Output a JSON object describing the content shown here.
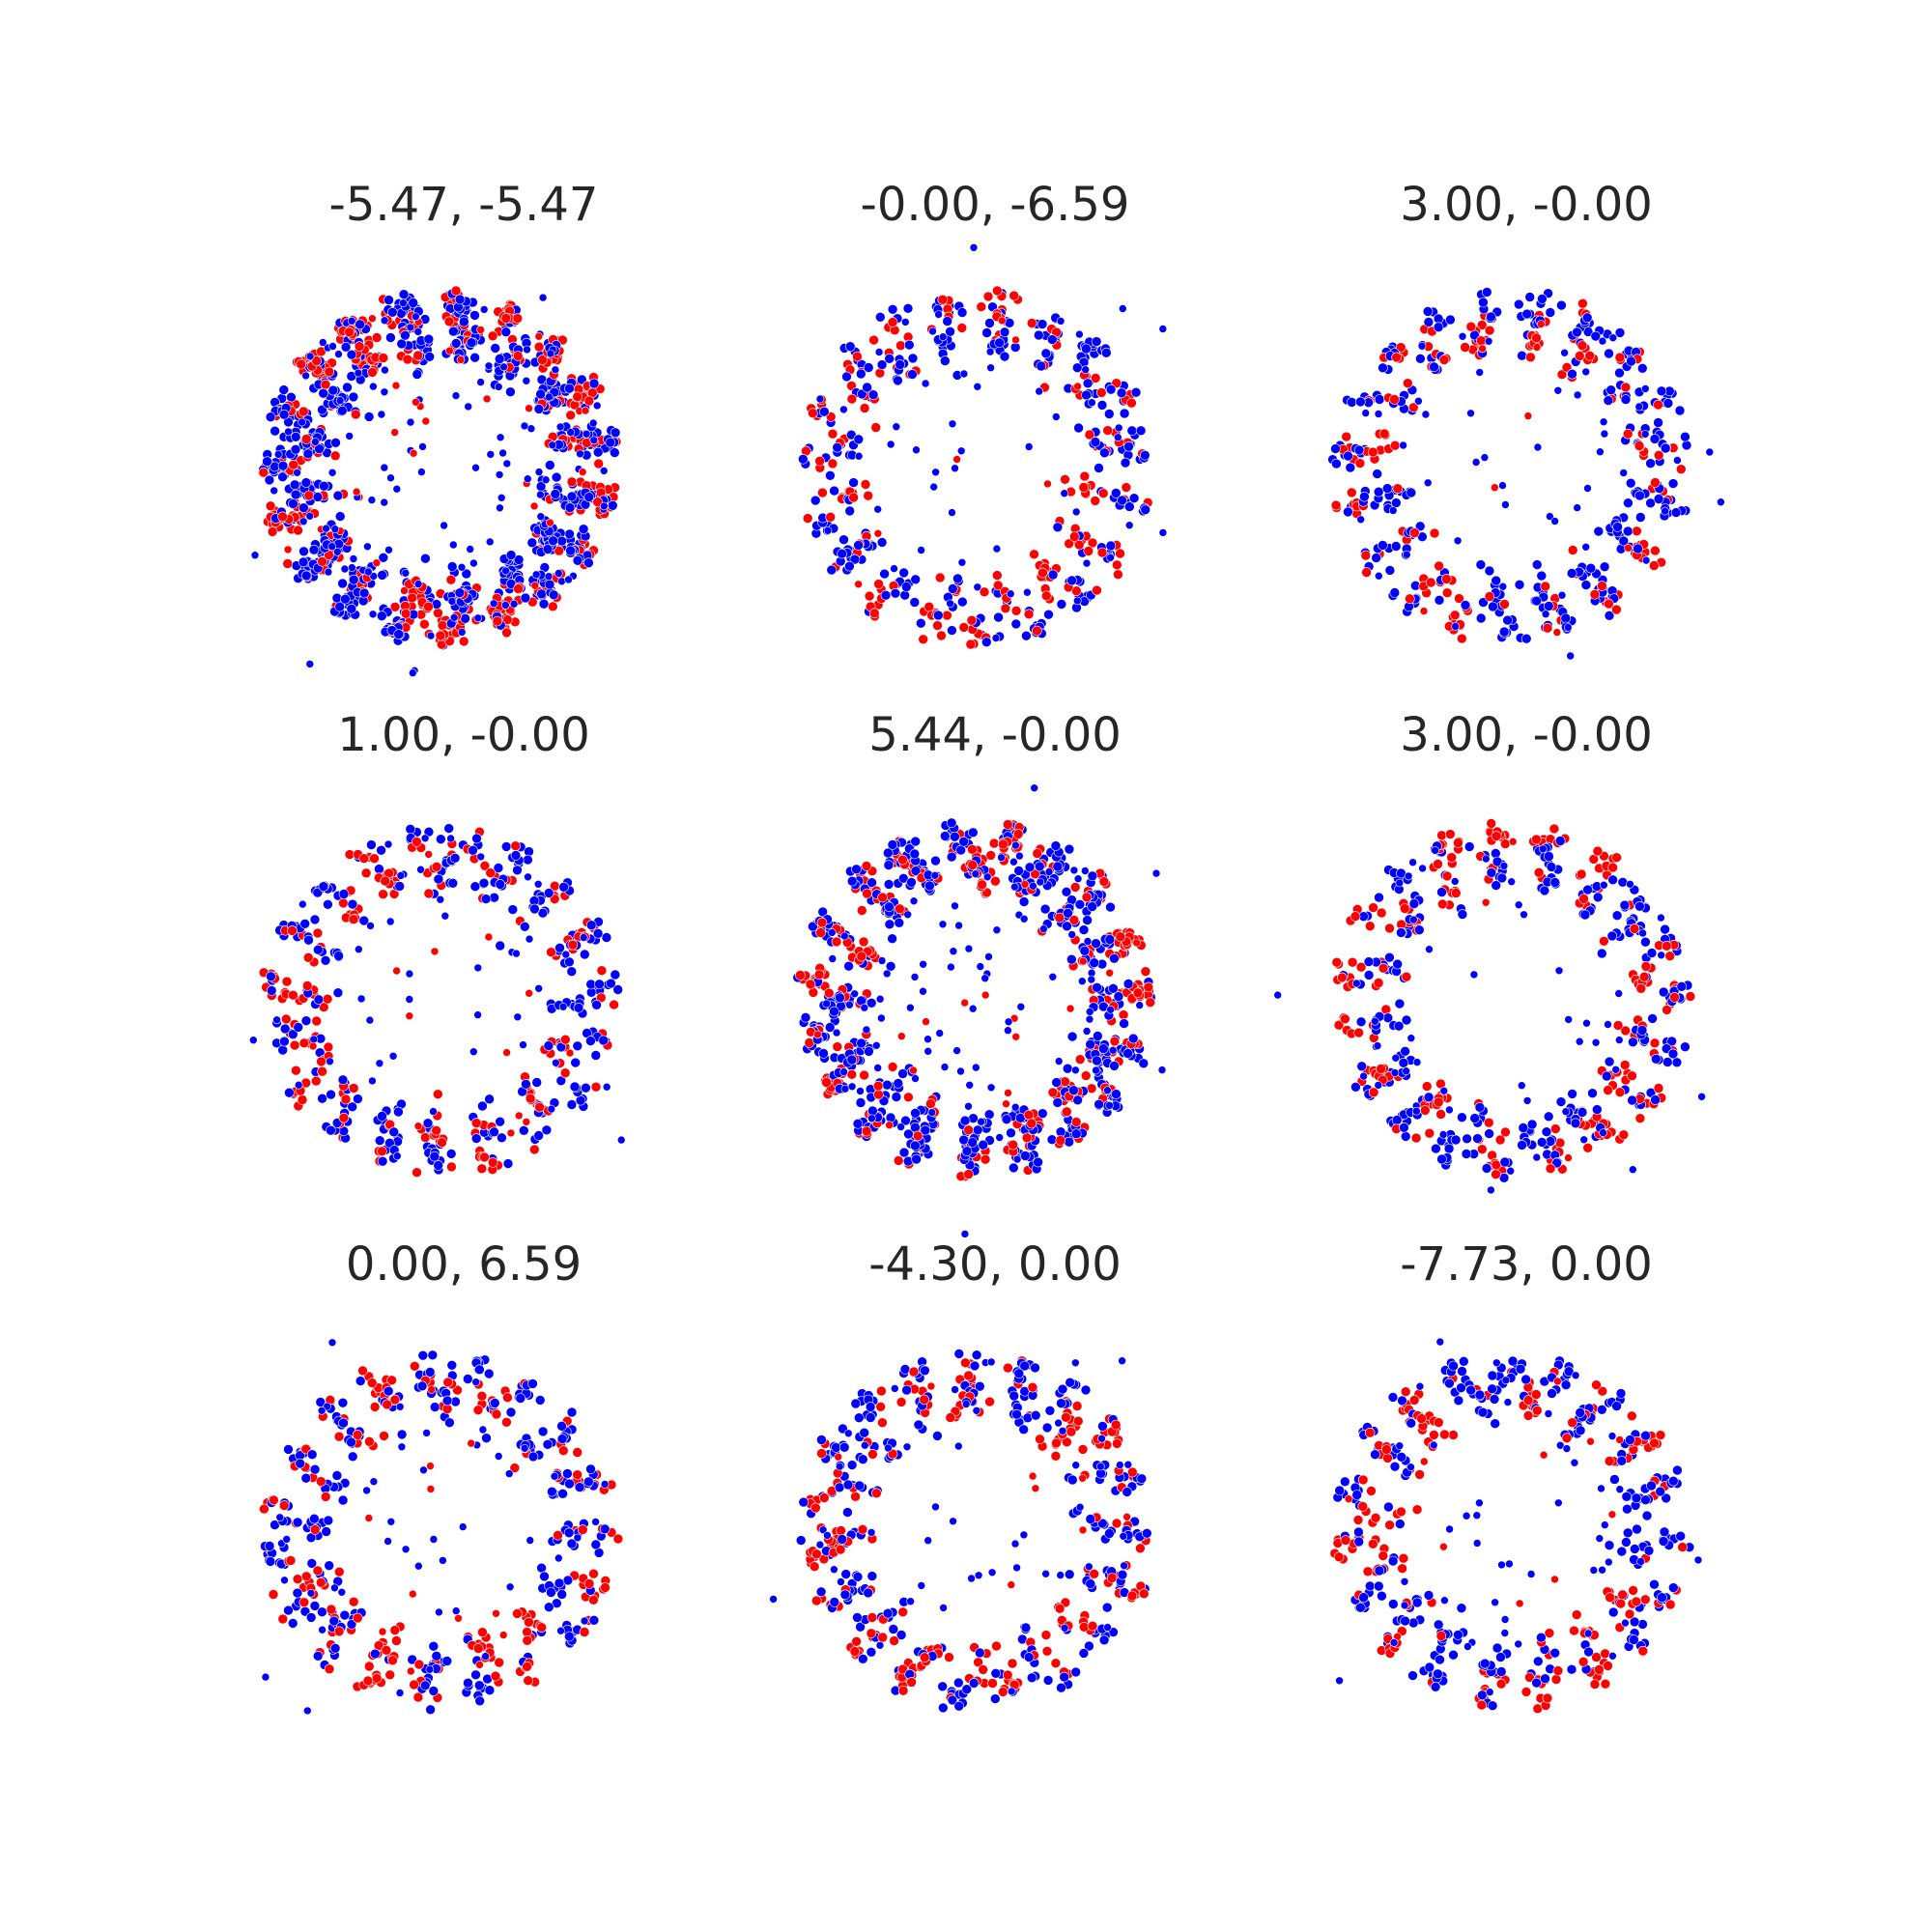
{
  "figure": {
    "colors": {
      "class_a": "#0000ff",
      "class_b": "#ff0000",
      "marker_edge": "#ffffff",
      "title": "#262626"
    },
    "legend": null
  },
  "chart_data": [
    {
      "type": "scatter",
      "title": "-5.47, -5.47",
      "clusters": 30,
      "density": "very-high",
      "red_ratio": 0.35,
      "outliers": 5,
      "seed": 11
    },
    {
      "type": "scatter",
      "title": "-0.00, -6.59",
      "clusters": 28,
      "density": "medium",
      "red_ratio": 0.4,
      "outliers": 4,
      "seed": 23
    },
    {
      "type": "scatter",
      "title": "3.00, -0.00",
      "clusters": 28,
      "density": "medium",
      "red_ratio": 0.35,
      "outliers": 3,
      "seed": 37
    },
    {
      "type": "scatter",
      "title": "1.00, -0.00",
      "clusters": 26,
      "density": "medium",
      "red_ratio": 0.45,
      "outliers": 3,
      "seed": 41
    },
    {
      "type": "scatter",
      "title": "5.44, -0.00",
      "clusters": 30,
      "density": "high",
      "red_ratio": 0.3,
      "outliers": 4,
      "seed": 53
    },
    {
      "type": "scatter",
      "title": "3.00, -0.00",
      "clusters": 28,
      "density": "medium",
      "red_ratio": 0.4,
      "outliers": 4,
      "seed": 67
    },
    {
      "type": "scatter",
      "title": "0.00, 6.59",
      "clusters": 28,
      "density": "medium",
      "red_ratio": 0.45,
      "outliers": 3,
      "seed": 71
    },
    {
      "type": "scatter",
      "title": "-4.30, 0.00",
      "clusters": 28,
      "density": "medium",
      "red_ratio": 0.4,
      "outliers": 3,
      "seed": 83
    },
    {
      "type": "scatter",
      "title": "-7.73, 0.00",
      "clusters": 28,
      "density": "medium",
      "red_ratio": 0.4,
      "outliers": 3,
      "seed": 97
    }
  ]
}
